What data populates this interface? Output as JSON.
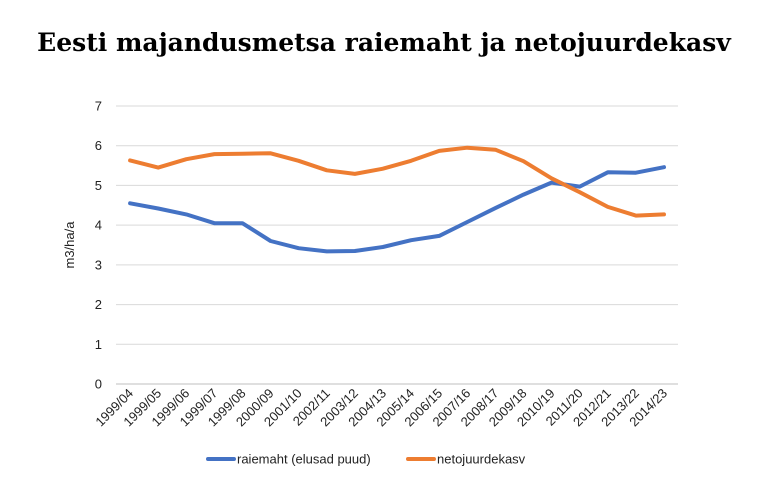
{
  "chart_data": {
    "type": "line",
    "title": "Eesti majandusmetsa raiemaht ja netojuurdekasv",
    "ylabel": "m3/ha/a",
    "xlabel": "",
    "ylim": [
      0,
      7
    ],
    "yticks": [
      0,
      1,
      2,
      3,
      4,
      5,
      6,
      7
    ],
    "grid": true,
    "legend_position": "bottom",
    "categories": [
      "1999/04",
      "1999/05",
      "1999/06",
      "1999/07",
      "1999/08",
      "2000/09",
      "2001/10",
      "2002/11",
      "2003/12",
      "2004/13",
      "2005/14",
      "2006/15",
      "2007/16",
      "2008/17",
      "2009/18",
      "2010/19",
      "2011/20",
      "2012/21",
      "2013/22",
      "2014/23"
    ],
    "series": [
      {
        "name": "raiemaht (elusad puud)",
        "color": "#4472C4",
        "values": [
          4.55,
          4.42,
          4.27,
          4.05,
          4.05,
          3.6,
          3.42,
          3.34,
          3.35,
          3.45,
          3.62,
          3.73,
          4.08,
          4.43,
          4.77,
          5.07,
          4.97,
          5.33,
          5.32,
          5.46
        ]
      },
      {
        "name": "netojuurdekasv",
        "color": "#ED7D31",
        "values": [
          5.63,
          5.45,
          5.66,
          5.79,
          5.8,
          5.81,
          5.62,
          5.38,
          5.29,
          5.42,
          5.62,
          5.87,
          5.95,
          5.9,
          5.61,
          5.18,
          4.83,
          4.46,
          4.24,
          4.27
        ]
      }
    ]
  }
}
